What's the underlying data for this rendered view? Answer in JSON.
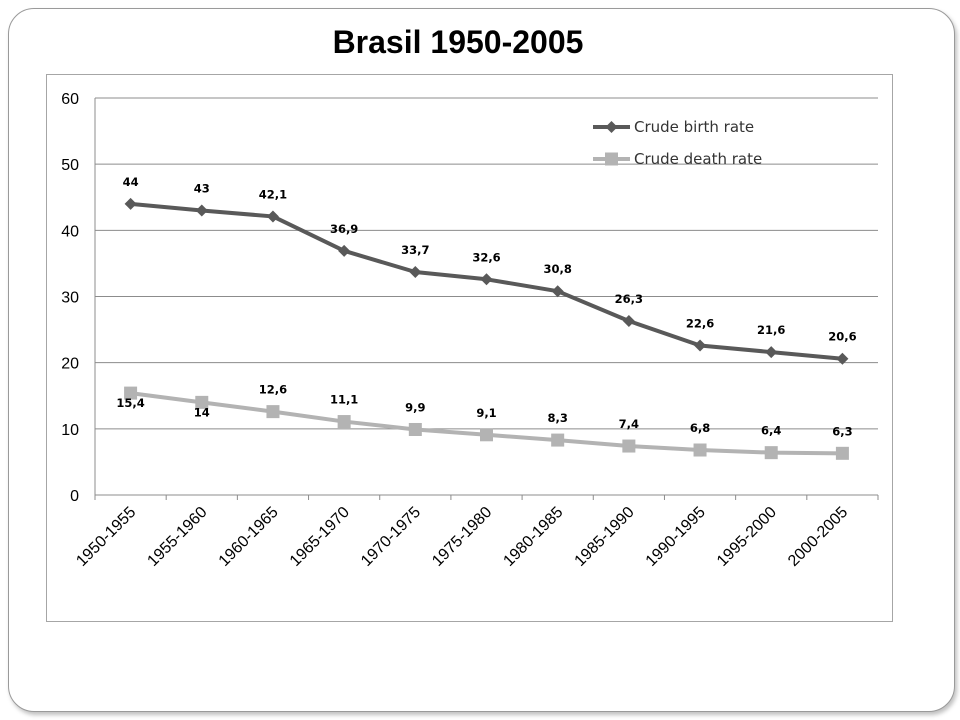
{
  "title": "Brasil 1950-2005",
  "chart_data": {
    "type": "line",
    "title": "Brasil 1950-2005",
    "categories": [
      "1950-1955",
      "1955-1960",
      "1960-1965",
      "1965-1970",
      "1970-1975",
      "1975-1980",
      "1980-1985",
      "1985-1990",
      "1990-1995",
      "1995-2000",
      "2000-2005"
    ],
    "ylim": [
      0,
      60
    ],
    "yticks": [
      0,
      10,
      20,
      30,
      40,
      50,
      60
    ],
    "grid": true,
    "legend_position": "top-right",
    "series": [
      {
        "name": "Crude birth rate",
        "color": "#595959",
        "marker": "diamond",
        "values": [
          44,
          43,
          42.1,
          36.9,
          33.7,
          32.6,
          30.8,
          26.3,
          22.6,
          21.6,
          20.6
        ],
        "labels": [
          "44",
          "43",
          "42,1",
          "36,9",
          "33,7",
          "32,6",
          "30,8",
          "26,3",
          "22,6",
          "21,6",
          "20,6"
        ]
      },
      {
        "name": "Crude death rate",
        "color": "#b3b3b3",
        "marker": "square",
        "values": [
          15.4,
          14,
          12.6,
          11.1,
          9.9,
          9.1,
          8.3,
          7.4,
          6.8,
          6.4,
          6.3
        ],
        "labels": [
          "15,4",
          "14",
          "12,6",
          "11,1",
          "9,9",
          "9,1",
          "8,3",
          "7,4",
          "6,8",
          "6,4",
          "6,3"
        ]
      }
    ]
  }
}
